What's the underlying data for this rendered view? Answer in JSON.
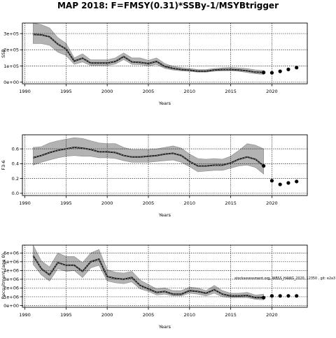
{
  "title": "MAP 2018: F=FMSY(0.31)*SSBy-1/MSYBtrigger",
  "chart_data": [
    {
      "type": "line",
      "title": "",
      "xlabel": "Years",
      "ylabel": "SSB",
      "xlim": [
        1989.7,
        2024.3
      ],
      "ylim": [
        -10000,
        365000
      ],
      "x_ticks": [
        1990,
        1995,
        2000,
        2005,
        2010,
        2015,
        2020
      ],
      "y_ticks": [
        0,
        100000,
        200000,
        300000
      ],
      "y_tick_labels": [
        "0e+00",
        "1e+05",
        "2e+05",
        "3e+05"
      ],
      "grid": true,
      "years": [
        1991,
        1992,
        1993,
        1994,
        1995,
        1996,
        1997,
        1998,
        1999,
        2000,
        2001,
        2002,
        2003,
        2004,
        2005,
        2006,
        2007,
        2008,
        2009,
        2010,
        2011,
        2012,
        2013,
        2014,
        2015,
        2016,
        2017,
        2018,
        2019
      ],
      "median": [
        295000,
        292000,
        280000,
        235000,
        205000,
        130000,
        148000,
        118000,
        118000,
        118000,
        128000,
        158000,
        125000,
        122000,
        115000,
        128000,
        97000,
        85000,
        78000,
        74000,
        68000,
        68000,
        75000,
        78000,
        78000,
        75000,
        70000,
        62000,
        60000
      ],
      "lower": [
        238000,
        238000,
        228000,
        185000,
        165000,
        110000,
        125000,
        103000,
        103000,
        103000,
        112000,
        140000,
        110000,
        108000,
        100000,
        110000,
        85000,
        75000,
        70000,
        67000,
        62000,
        62000,
        68000,
        70000,
        71000,
        67000,
        60000,
        52000,
        48000
      ],
      "upper": [
        365000,
        355000,
        335000,
        275000,
        240000,
        150000,
        175000,
        138000,
        138000,
        138000,
        150000,
        180000,
        150000,
        150000,
        135000,
        150000,
        115000,
        98000,
        90000,
        85000,
        78000,
        78000,
        85000,
        89000,
        91000,
        88000,
        84000,
        76000,
        72000
      ],
      "projection_years": [
        2020,
        2021,
        2022,
        2023
      ],
      "projection_values": [
        58000,
        67000,
        79000,
        90000
      ]
    },
    {
      "type": "line",
      "title": "",
      "xlabel": "Years",
      "ylabel": "F3-6",
      "xlim": [
        1989.7,
        2024.3
      ],
      "ylim": [
        -0.03,
        0.79
      ],
      "x_ticks": [
        1990,
        1995,
        2000,
        2005,
        2010,
        2015,
        2020
      ],
      "y_ticks": [
        0.0,
        0.2,
        0.4,
        0.6
      ],
      "y_tick_labels": [
        "0.0",
        "0.2",
        "0.4",
        "0.6"
      ],
      "grid": true,
      "years": [
        1991,
        1992,
        1993,
        1994,
        1995,
        1996,
        1997,
        1998,
        1999,
        2000,
        2001,
        2002,
        2003,
        2004,
        2005,
        2006,
        2007,
        2008,
        2009,
        2010,
        2011,
        2012,
        2013,
        2014,
        2015,
        2016,
        2017,
        2018,
        2019
      ],
      "median": [
        0.48,
        0.51,
        0.55,
        0.58,
        0.6,
        0.62,
        0.61,
        0.59,
        0.56,
        0.56,
        0.55,
        0.51,
        0.49,
        0.49,
        0.5,
        0.51,
        0.53,
        0.54,
        0.51,
        0.43,
        0.37,
        0.37,
        0.38,
        0.38,
        0.41,
        0.46,
        0.49,
        0.46,
        0.37
      ],
      "lower": [
        0.38,
        0.42,
        0.45,
        0.48,
        0.5,
        0.51,
        0.5,
        0.5,
        0.48,
        0.48,
        0.47,
        0.44,
        0.42,
        0.42,
        0.42,
        0.43,
        0.44,
        0.45,
        0.42,
        0.36,
        0.29,
        0.3,
        0.31,
        0.31,
        0.34,
        0.37,
        0.38,
        0.35,
        0.26
      ],
      "upper": [
        0.62,
        0.63,
        0.68,
        0.71,
        0.73,
        0.75,
        0.74,
        0.71,
        0.68,
        0.67,
        0.67,
        0.62,
        0.59,
        0.59,
        0.59,
        0.6,
        0.62,
        0.64,
        0.61,
        0.53,
        0.47,
        0.46,
        0.47,
        0.46,
        0.5,
        0.58,
        0.67,
        0.65,
        0.6
      ],
      "projection_years": [
        2020,
        2021,
        2022,
        2023
      ],
      "projection_values": [
        0.17,
        0.12,
        0.14,
        0.16
      ]
    },
    {
      "type": "line",
      "title": "",
      "xlabel": "Years",
      "ylabel": "Recruitment (age 0)",
      "xlim": [
        1989.7,
        2024.3
      ],
      "ylim": [
        -200000,
        6900000
      ],
      "x_ticks": [
        1990,
        1995,
        2000,
        2005,
        2010,
        2015,
        2020
      ],
      "y_ticks": [
        0,
        1000000,
        2000000,
        3000000,
        4000000,
        5000000,
        6000000
      ],
      "y_tick_labels": [
        "0e+00",
        "1e+06",
        "2e+06",
        "3e+06",
        "4e+06",
        "5e+06",
        "6e+06"
      ],
      "grid": true,
      "years": [
        1991,
        1992,
        1993,
        1994,
        1995,
        1996,
        1997,
        1998,
        1999,
        2000,
        2001,
        2002,
        2003,
        2004,
        2005,
        2006,
        2007,
        2008,
        2009,
        2010,
        2011,
        2012,
        2013,
        2014,
        2015,
        2016,
        2017,
        2018,
        2019
      ],
      "median": [
        5700000,
        4200000,
        3500000,
        4900000,
        4600000,
        4600000,
        3900000,
        5000000,
        5300000,
        3300000,
        3100000,
        3000000,
        3200000,
        2300000,
        1900000,
        1500000,
        1600000,
        1300000,
        1300000,
        1700000,
        1600000,
        1400000,
        1800000,
        1300000,
        1100000,
        1100000,
        1150000,
        900000,
        900000
      ],
      "lower": [
        4700000,
        3500000,
        2800000,
        4200000,
        3900000,
        4000000,
        3200000,
        4300000,
        4600000,
        2800000,
        2600000,
        2500000,
        2700000,
        1900000,
        1600000,
        1200000,
        1300000,
        1100000,
        1100000,
        1400000,
        1300000,
        1100000,
        1400000,
        1000000,
        900000,
        900000,
        900000,
        700000,
        650000
      ],
      "upper": [
        6900000,
        5100000,
        4400000,
        6000000,
        5600000,
        5600000,
        4900000,
        6000000,
        6400000,
        4100000,
        3800000,
        3700000,
        3900000,
        2900000,
        2400000,
        1900000,
        2000000,
        1700000,
        1700000,
        2100000,
        2000000,
        1700000,
        2300000,
        1700000,
        1400000,
        1400000,
        1500000,
        1200000,
        1300000
      ],
      "projection_years": [
        2020,
        2021,
        2022,
        2023
      ],
      "projection_values": [
        1100000,
        1100000,
        1100000,
        1100000
      ],
      "annotation": "stockassessment.org, WBSS_HAWG_2020, 12350 , git: e2a3"
    }
  ]
}
